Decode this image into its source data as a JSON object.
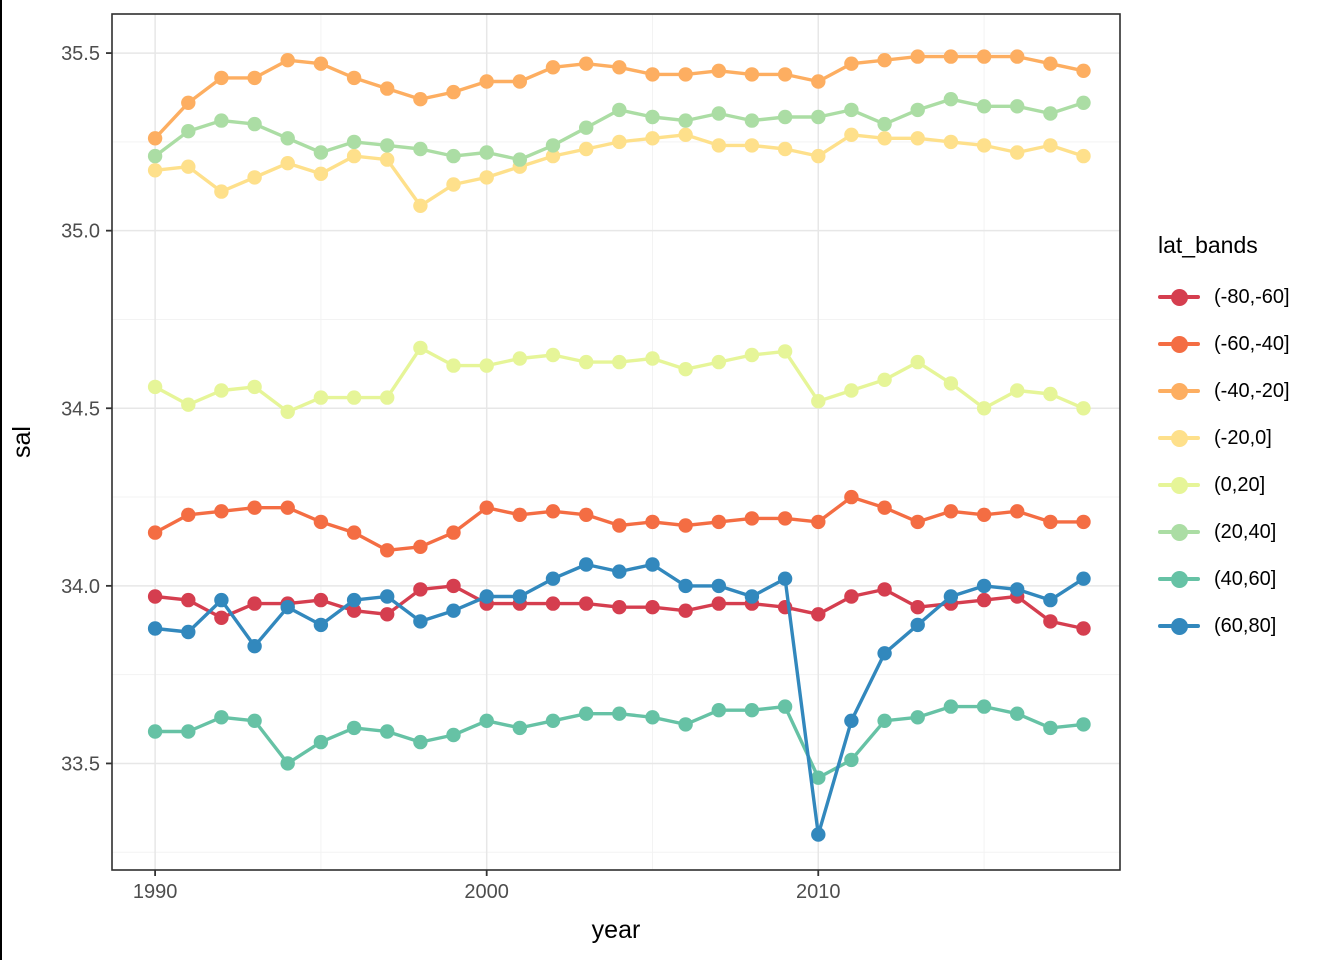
{
  "chart_data": {
    "type": "line",
    "title": "",
    "xlabel": "year",
    "ylabel": "sal",
    "legend_title": "lat_bands",
    "legend_position": "right",
    "grid": true,
    "panel_border_color": "#2f2f2f",
    "major_grid_color": "#e7e7e7",
    "minor_grid_color": "#f3f3f3",
    "tick_label_color": "#4d4d4d",
    "axis_title_color": "#000000",
    "xlim": [
      1988.7,
      2019.1
    ],
    "ylim": [
      33.2,
      35.61
    ],
    "x_ticks": [
      1990,
      2000,
      2010
    ],
    "x_tick_labels": [
      "1990",
      "2000",
      "2010"
    ],
    "x_minor_ticks": [
      1995,
      2005,
      2015
    ],
    "y_ticks": [
      33.5,
      34.0,
      34.5,
      35.0,
      35.5
    ],
    "y_tick_labels": [
      "33.5",
      "34.0",
      "34.5",
      "35.0",
      "35.5"
    ],
    "y_minor_ticks": [
      33.25,
      33.75,
      34.25,
      34.75,
      35.25
    ],
    "x": [
      1990,
      1991,
      1992,
      1993,
      1994,
      1995,
      1996,
      1997,
      1998,
      1999,
      2000,
      2001,
      2002,
      2003,
      2004,
      2005,
      2006,
      2007,
      2008,
      2009,
      2010,
      2011,
      2012,
      2013,
      2014,
      2015,
      2016,
      2017,
      2018
    ],
    "series": [
      {
        "name": "(-80,-60]",
        "color": "#D53E4F",
        "values": [
          33.97,
          33.96,
          33.91,
          33.95,
          33.95,
          33.96,
          33.93,
          33.92,
          33.99,
          34.0,
          33.95,
          33.95,
          33.95,
          33.95,
          33.94,
          33.94,
          33.93,
          33.95,
          33.95,
          33.94,
          33.92,
          33.97,
          33.99,
          33.94,
          33.95,
          33.96,
          33.97,
          33.9,
          33.88
        ]
      },
      {
        "name": "(-60,-40]",
        "color": "#F46D43",
        "values": [
          34.15,
          34.2,
          34.21,
          34.22,
          34.22,
          34.18,
          34.15,
          34.1,
          34.11,
          34.15,
          34.22,
          34.2,
          34.21,
          34.2,
          34.17,
          34.18,
          34.17,
          34.18,
          34.19,
          34.19,
          34.18,
          34.25,
          34.22,
          34.18,
          34.21,
          34.2,
          34.21,
          34.18,
          34.18
        ]
      },
      {
        "name": "(-40,-20]",
        "color": "#FDAE61",
        "values": [
          35.26,
          35.36,
          35.43,
          35.43,
          35.48,
          35.47,
          35.43,
          35.4,
          35.37,
          35.39,
          35.42,
          35.42,
          35.46,
          35.47,
          35.46,
          35.44,
          35.44,
          35.45,
          35.44,
          35.44,
          35.42,
          35.47,
          35.48,
          35.49,
          35.49,
          35.49,
          35.49,
          35.47,
          35.45
        ]
      },
      {
        "name": "(-20,0]",
        "color": "#FEE08B",
        "values": [
          35.17,
          35.18,
          35.11,
          35.15,
          35.19,
          35.16,
          35.21,
          35.2,
          35.07,
          35.13,
          35.15,
          35.18,
          35.21,
          35.23,
          35.25,
          35.26,
          35.27,
          35.24,
          35.24,
          35.23,
          35.21,
          35.27,
          35.26,
          35.26,
          35.25,
          35.24,
          35.22,
          35.24,
          35.21
        ]
      },
      {
        "name": "(0,20]",
        "color": "#E6F598",
        "values": [
          34.56,
          34.51,
          34.55,
          34.56,
          34.49,
          34.53,
          34.53,
          34.53,
          34.67,
          34.62,
          34.62,
          34.64,
          34.65,
          34.63,
          34.63,
          34.64,
          34.61,
          34.63,
          34.65,
          34.66,
          34.52,
          34.55,
          34.58,
          34.63,
          34.57,
          34.5,
          34.55,
          34.54,
          34.5
        ]
      },
      {
        "name": "(20,40]",
        "color": "#ABDDA4",
        "values": [
          35.21,
          35.28,
          35.31,
          35.3,
          35.26,
          35.22,
          35.25,
          35.24,
          35.23,
          35.21,
          35.22,
          35.2,
          35.24,
          35.29,
          35.34,
          35.32,
          35.31,
          35.33,
          35.31,
          35.32,
          35.32,
          35.34,
          35.3,
          35.34,
          35.37,
          35.35,
          35.35,
          35.33,
          35.36
        ]
      },
      {
        "name": "(40,60]",
        "color": "#66C2A5",
        "values": [
          33.59,
          33.59,
          33.63,
          33.62,
          33.5,
          33.56,
          33.6,
          33.59,
          33.56,
          33.58,
          33.62,
          33.6,
          33.62,
          33.64,
          33.64,
          33.63,
          33.61,
          33.65,
          33.65,
          33.66,
          33.46,
          33.51,
          33.62,
          33.63,
          33.66,
          33.66,
          33.64,
          33.6,
          33.61
        ]
      },
      {
        "name": "(60,80]",
        "color": "#3288BD",
        "values": [
          33.88,
          33.87,
          33.96,
          33.83,
          33.94,
          33.89,
          33.96,
          33.97,
          33.9,
          33.93,
          33.97,
          33.97,
          34.02,
          34.06,
          34.04,
          34.06,
          34.0,
          34.0,
          33.97,
          34.02,
          33.3,
          33.62,
          33.81,
          33.89,
          33.97,
          34.0,
          33.99,
          33.96,
          34.02
        ]
      }
    ]
  }
}
